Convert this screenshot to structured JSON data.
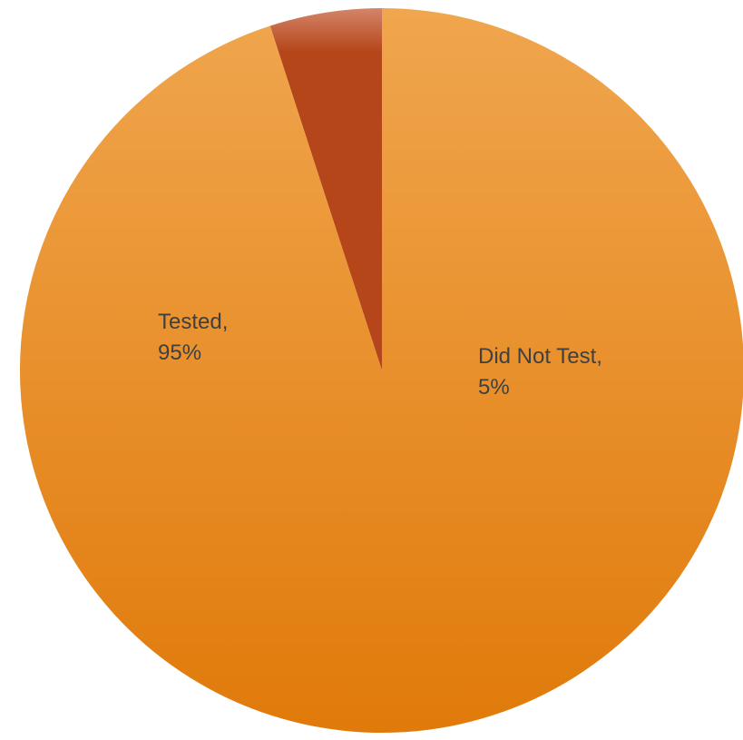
{
  "chart_data": {
    "type": "pie",
    "title": "",
    "slices": [
      {
        "name": "Did Not Test",
        "value": 5,
        "label_line1": "Did Not Test,",
        "label_line2": "5%",
        "color": "#b5461a",
        "color_light": "#d4856a"
      },
      {
        "name": "Tested",
        "value": 95,
        "label_line1": "Tested,",
        "label_line2": "95%",
        "color": "#e07a0a",
        "color_light": "#f0a64e"
      }
    ],
    "start_angle_deg": 0,
    "direction": "counter-clockwise",
    "legend": "none"
  }
}
